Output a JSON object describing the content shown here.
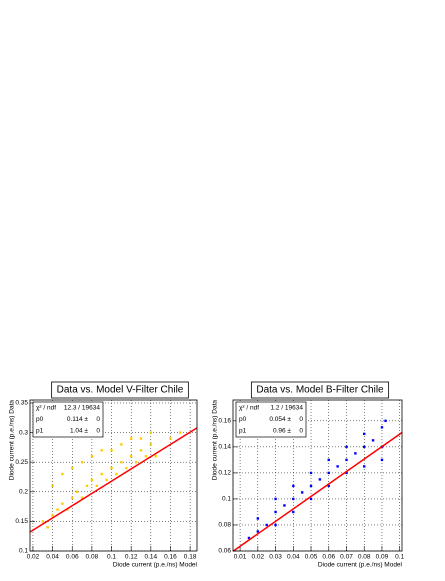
{
  "chart_data": [
    {
      "type": "scatter",
      "title": "Data vs. Model V-Filter Chile",
      "x_label": "Diode current (p.e./ns) Model",
      "y_label": "Diode current (p.e./ns) Data",
      "xlim": [
        0.017,
        0.187
      ],
      "ylim": [
        0.1,
        0.355
      ],
      "xticks": [
        0.02,
        0.04,
        0.06,
        0.08,
        0.1,
        0.12,
        0.14,
        0.16,
        0.18
      ],
      "yticks": [
        0.1,
        0.15,
        0.2,
        0.25,
        0.3,
        0.35
      ],
      "grid": true,
      "series": [
        {
          "color": "#ffcc00",
          "style": "points",
          "x": [
            0.03,
            0.035,
            0.04,
            0.045,
            0.05,
            0.055,
            0.06,
            0.065,
            0.07,
            0.075,
            0.08,
            0.085,
            0.09,
            0.095,
            0.1,
            0.105,
            0.11,
            0.115,
            0.12,
            0.125,
            0.13,
            0.135,
            0.14,
            0.145,
            0.04,
            0.05,
            0.06,
            0.07,
            0.08,
            0.09,
            0.1,
            0.11,
            0.12,
            0.13,
            0.14,
            0.16,
            0.17
          ],
          "values": [
            0.15,
            0.14,
            0.16,
            0.17,
            0.18,
            0.17,
            0.19,
            0.2,
            0.19,
            0.21,
            0.22,
            0.21,
            0.23,
            0.22,
            0.24,
            0.23,
            0.25,
            0.24,
            0.26,
            0.25,
            0.27,
            0.26,
            0.28,
            0.26,
            0.21,
            0.23,
            0.24,
            0.25,
            0.26,
            0.27,
            0.27,
            0.28,
            0.29,
            0.29,
            0.3,
            0.29,
            0.3
          ]
        },
        {
          "color": "#ff0000",
          "style": "line",
          "x": [
            0.017,
            0.187
          ],
          "values": [
            0.132,
            0.308
          ]
        }
      ],
      "stats": [
        [
          "χ² / ndf",
          "12.3 / 19634"
        ],
        [
          "p0",
          "0.114 ±",
          "0"
        ],
        [
          "p1",
          "1.04 ±",
          "0"
        ]
      ]
    },
    {
      "type": "scatter",
      "title": "Data vs. Model B-Filter Chile",
      "x_label": "Diode current (p.e./ns) Model",
      "y_label": "Diode current (p.e./ns) Data",
      "xlim": [
        0.006,
        0.1013
      ],
      "ylim": [
        0.06,
        0.176
      ],
      "xticks": [
        0.01,
        0.02,
        0.03,
        0.04,
        0.05,
        0.06,
        0.07,
        0.08,
        0.09,
        0.1
      ],
      "yticks": [
        0.06,
        0.08,
        0.1,
        0.12,
        0.14,
        0.16
      ],
      "grid": true,
      "series": [
        {
          "color": "#0000ff",
          "style": "points",
          "x": [
            0.015,
            0.02,
            0.02,
            0.025,
            0.03,
            0.03,
            0.035,
            0.04,
            0.04,
            0.045,
            0.05,
            0.05,
            0.055,
            0.06,
            0.06,
            0.065,
            0.07,
            0.07,
            0.075,
            0.08,
            0.08,
            0.085,
            0.09,
            0.09,
            0.092,
            0.03,
            0.04,
            0.05,
            0.06,
            0.07,
            0.08,
            0.09
          ],
          "values": [
            0.07,
            0.075,
            0.085,
            0.08,
            0.09,
            0.1,
            0.095,
            0.1,
            0.11,
            0.105,
            0.11,
            0.12,
            0.115,
            0.12,
            0.13,
            0.125,
            0.13,
            0.14,
            0.135,
            0.14,
            0.15,
            0.145,
            0.14,
            0.155,
            0.16,
            0.08,
            0.09,
            0.1,
            0.11,
            0.12,
            0.125,
            0.13
          ]
        },
        {
          "color": "#ff0000",
          "style": "line",
          "x": [
            0.006,
            0.1013
          ],
          "values": [
            0.0598,
            0.151
          ]
        }
      ],
      "stats": [
        [
          "χ² / ndf",
          "1.2 / 19634"
        ],
        [
          "p0",
          "0.054 ±",
          "0"
        ],
        [
          "p1",
          "0.96 ±",
          "0"
        ]
      ]
    }
  ]
}
